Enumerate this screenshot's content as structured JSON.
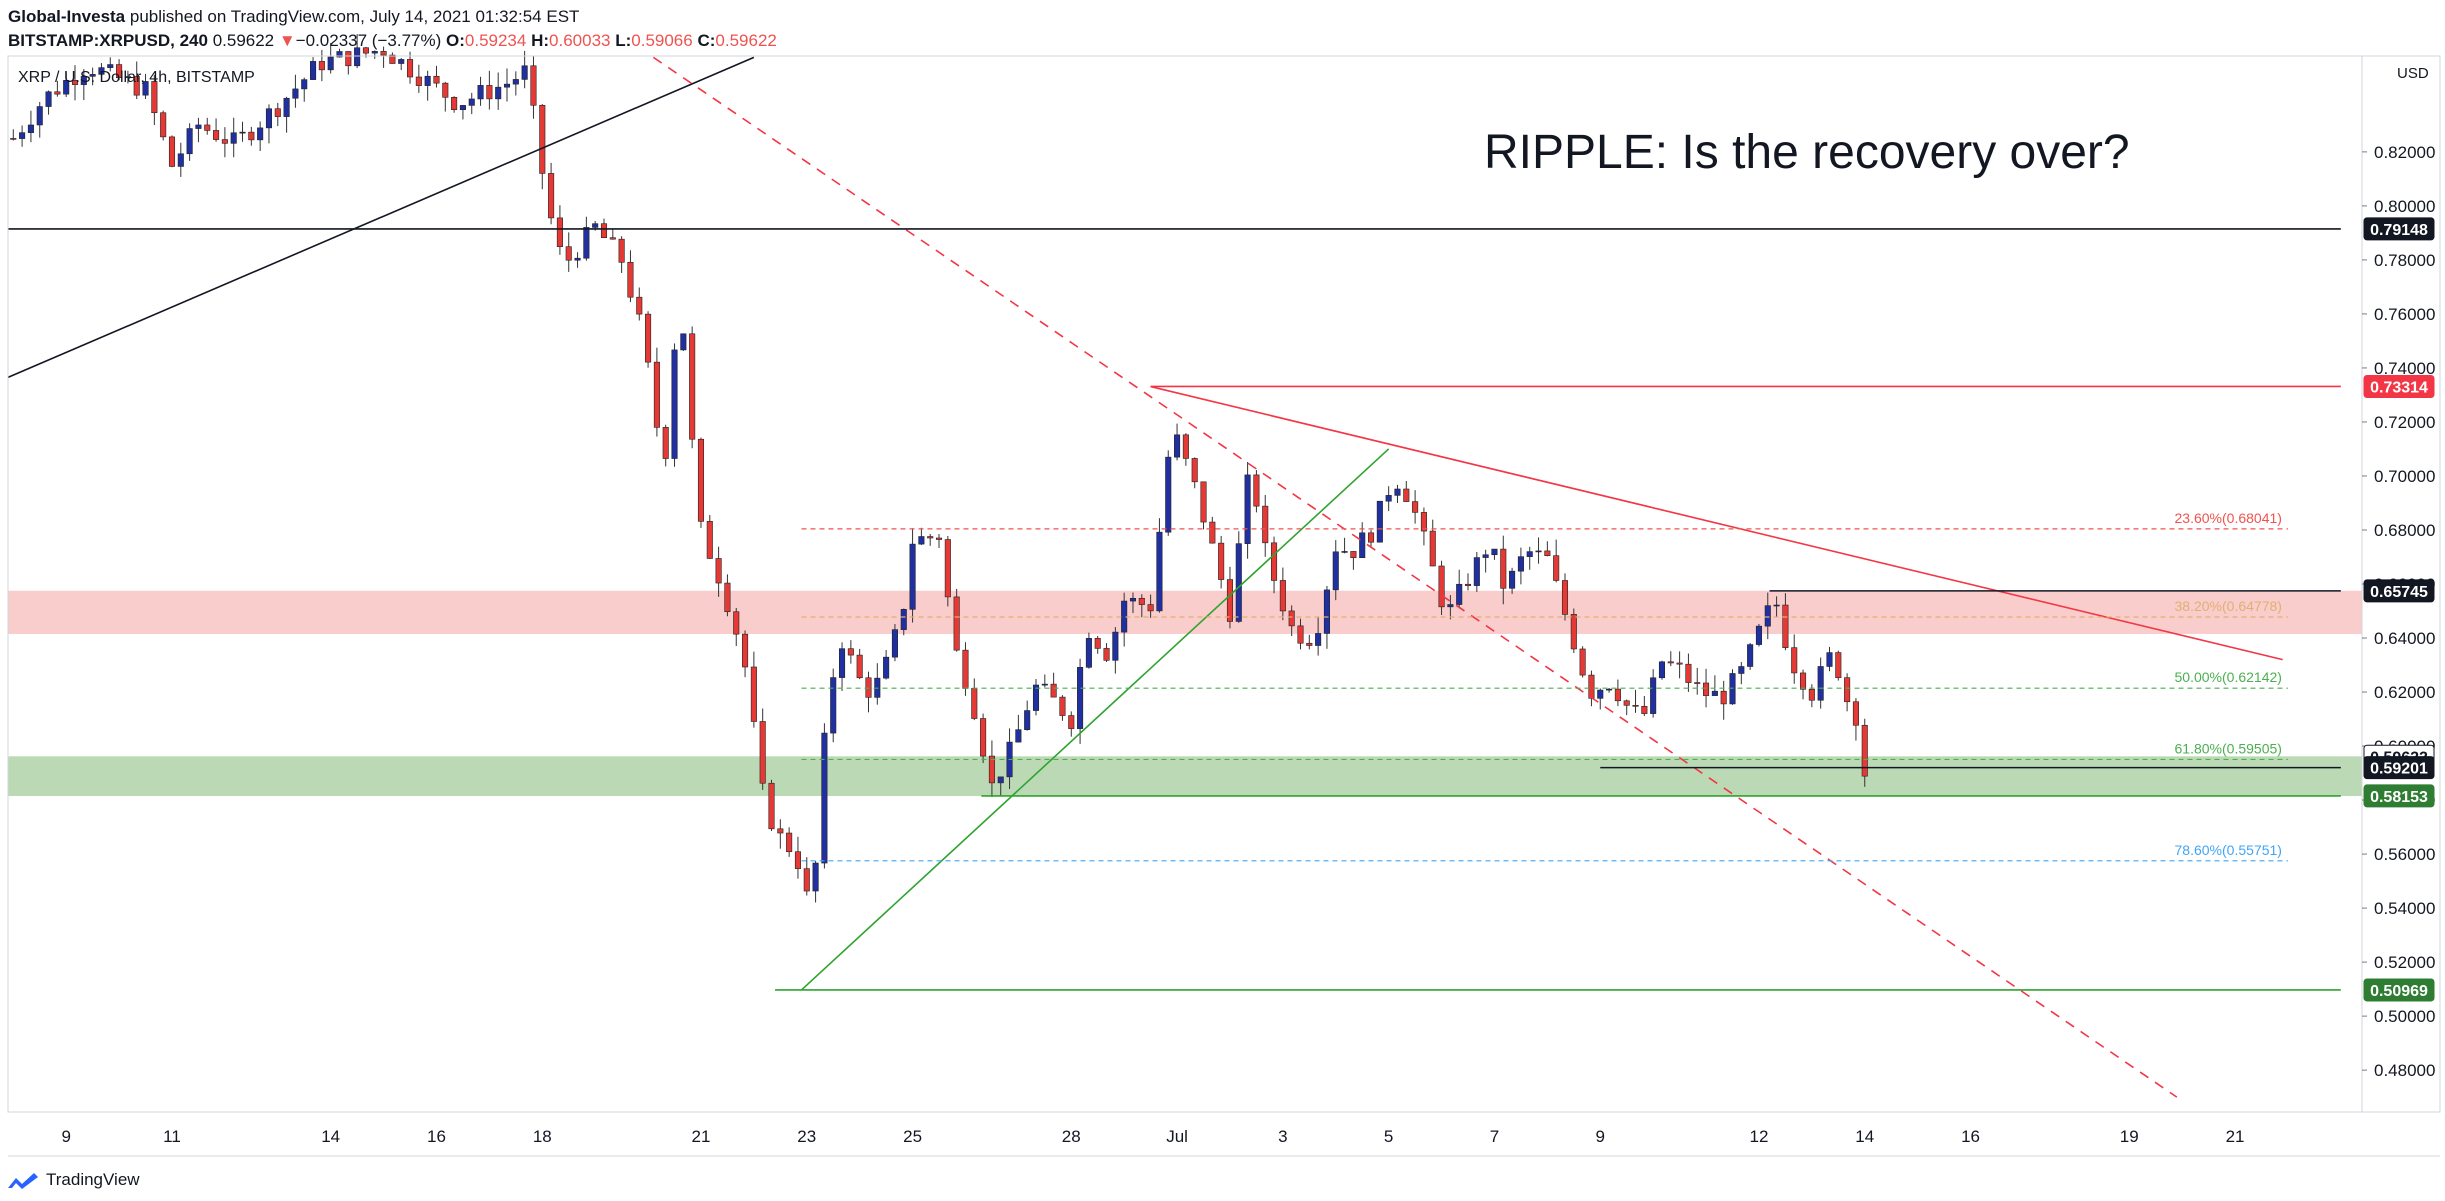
{
  "header": {
    "publisher": "Global-Investa",
    "published_text": "published on TradingView.com, July 14, 2021 01:32:54 EST",
    "symbol": "BITSTAMP:XRPUSD, 240",
    "last": "0.59622",
    "change_arrow": "▼",
    "change": "−0.02337 (−3.77%)",
    "o_label": "O:",
    "o_value": "0.59234",
    "h_label": "H:",
    "h_value": "0.60033",
    "l_label": "L:",
    "l_value": "0.59066",
    "c_label": "C:",
    "c_value": "0.59622"
  },
  "footer": {
    "brand": "TradingView",
    "logo_icon": "tradingview-logo-icon"
  },
  "colors": {
    "up": "#2130a0",
    "down": "#e53935",
    "resistance_zone": "#f8bcbc",
    "support_zone": "#a5cc9c",
    "red_line": "#f23645",
    "green_line": "#2fa32f",
    "fib_red": "#ef5350",
    "fib_orange": "#e0b070",
    "fib_green": "#4caf50",
    "fib_blue": "#42a5f5"
  },
  "chart_data": {
    "type": "candlestick",
    "title": "RIPPLE: Is the recovery over?",
    "pair_label": "XRP / U.S. Dollar, 4h, BITSTAMP",
    "currency_label": "USD",
    "ylim": [
      0.4645,
      0.8555
    ],
    "y_ticks": [
      0.48,
      0.5,
      0.52,
      0.54,
      0.56,
      0.58,
      0.6,
      0.62,
      0.64,
      0.66,
      0.68,
      0.7,
      0.72,
      0.74,
      0.76,
      0.78,
      0.8,
      0.82
    ],
    "y_tick_labels": [
      "0.48000",
      "0.50000",
      "0.52000",
      "0.54000",
      "0.56000",
      "0.58000",
      "0.60000",
      "0.62000",
      "0.64000",
      "0.66000",
      "0.68000",
      "0.70000",
      "0.72000",
      "0.74000",
      "0.76000",
      "0.78000",
      "0.80000",
      "0.82000"
    ],
    "x_ticks": [
      {
        "label": "9",
        "day": 9
      },
      {
        "label": "11",
        "day": 11
      },
      {
        "label": "14",
        "day": 14
      },
      {
        "label": "16",
        "day": 16
      },
      {
        "label": "18",
        "day": 18
      },
      {
        "label": "21",
        "day": 21
      },
      {
        "label": "23",
        "day": 23
      },
      {
        "label": "25",
        "day": 25
      },
      {
        "label": "28",
        "day": 28
      },
      {
        "label": "Jul",
        "day": 30
      },
      {
        "label": "3",
        "day": 32
      },
      {
        "label": "5",
        "day": 34
      },
      {
        "label": "7",
        "day": 36
      },
      {
        "label": "9",
        "day": 38
      },
      {
        "label": "12",
        "day": 41
      },
      {
        "label": "14",
        "day": 43
      },
      {
        "label": "16",
        "day": 45
      },
      {
        "label": "19",
        "day": 48
      },
      {
        "label": "21",
        "day": 50
      }
    ],
    "price_labels": [
      {
        "value": 0.79148,
        "text": "0.79148",
        "style": "black"
      },
      {
        "value": 0.73314,
        "text": "0.73314",
        "style": "red"
      },
      {
        "value": 0.65745,
        "text": "0.65745",
        "style": "black"
      },
      {
        "value": 0.59622,
        "text": "0.59622",
        "style": "white"
      },
      {
        "value": 0.59201,
        "text": "0.59201",
        "style": "black"
      },
      {
        "value": 0.58153,
        "text": "0.58153",
        "style": "green"
      },
      {
        "value": 0.50969,
        "text": "0.50969",
        "style": "green"
      }
    ],
    "zones": [
      {
        "name": "resistance",
        "from": 0.6415,
        "to": 0.6575
      },
      {
        "name": "support",
        "from": 0.5815,
        "to": 0.5962
      }
    ],
    "fib_levels": [
      {
        "text": "23.60%(0.68041)",
        "value": 0.68041,
        "color": "red"
      },
      {
        "text": "38.20%(0.64778)",
        "value": 0.64778,
        "color": "orange"
      },
      {
        "text": "50.00%(0.62142)",
        "value": 0.62142,
        "color": "green"
      },
      {
        "text": "61.80%(0.59505)",
        "value": 0.59505,
        "color": "green"
      },
      {
        "text": "78.60%(0.55751)",
        "value": 0.55751,
        "color": "blue"
      }
    ],
    "lines": [
      {
        "name": "long-term-trendline",
        "color": "black",
        "from": [
          7.9,
          0.7365
        ],
        "to": [
          22.0,
          0.855
        ]
      },
      {
        "name": "dashed-downtrend-line",
        "color": "red",
        "style": "dashed",
        "from": [
          20.1,
          0.855
        ],
        "to": [
          48.9,
          0.47
        ]
      },
      {
        "name": "descending-resistance-line",
        "color": "red",
        "from": [
          29.5,
          0.7331
        ],
        "to": [
          50.9,
          0.632
        ]
      },
      {
        "name": "ascending-support-line",
        "color": "green",
        "from": [
          22.9,
          0.5097
        ],
        "to": [
          34.0,
          0.71
        ]
      },
      {
        "name": "horizontal-0.79148",
        "color": "black",
        "from": [
          7.9,
          0.79148
        ],
        "to": [
          52.0,
          0.79148
        ]
      },
      {
        "name": "horizontal-0.73314",
        "color": "red",
        "from": [
          29.5,
          0.73314
        ],
        "to": [
          52.0,
          0.73314
        ]
      },
      {
        "name": "horizontal-0.65745",
        "color": "black",
        "from": [
          41.2,
          0.65745
        ],
        "to": [
          52.0,
          0.65745
        ]
      },
      {
        "name": "horizontal-0.59201",
        "color": "black",
        "from": [
          38.0,
          0.59201
        ],
        "to": [
          52.0,
          0.59201
        ]
      },
      {
        "name": "horizontal-0.58153",
        "color": "green",
        "from": [
          26.3,
          0.58153
        ],
        "to": [
          52.0,
          0.58153
        ]
      },
      {
        "name": "horizontal-0.50969",
        "color": "green",
        "from": [
          22.4,
          0.50969
        ],
        "to": [
          52.0,
          0.50969
        ]
      }
    ],
    "x_range_days": [
      7.9,
      52.4
    ],
    "candle_anchors": [
      [
        8.0,
        0.825
      ],
      [
        8.6,
        0.84
      ],
      [
        9.4,
        0.852
      ],
      [
        10.5,
        0.843
      ],
      [
        11.0,
        0.815
      ],
      [
        11.5,
        0.83
      ],
      [
        12.2,
        0.823
      ],
      [
        13.0,
        0.837
      ],
      [
        13.8,
        0.853
      ],
      [
        15.0,
        0.858
      ],
      [
        16.4,
        0.838
      ],
      [
        17.3,
        0.845
      ],
      [
        17.7,
        0.85
      ],
      [
        18.1,
        0.8
      ],
      [
        18.4,
        0.778
      ],
      [
        19.0,
        0.792
      ],
      [
        19.5,
        0.78
      ],
      [
        19.9,
        0.752
      ],
      [
        20.3,
        0.702
      ],
      [
        20.6,
        0.772
      ],
      [
        20.8,
        0.718
      ],
      [
        21.0,
        0.68
      ],
      [
        21.4,
        0.66
      ],
      [
        21.8,
        0.634
      ],
      [
        22.2,
        0.578
      ],
      [
        22.5,
        0.566
      ],
      [
        22.8,
        0.56
      ],
      [
        23.1,
        0.536
      ],
      [
        23.3,
        0.596
      ],
      [
        23.6,
        0.642
      ],
      [
        24.1,
        0.62
      ],
      [
        24.4,
        0.624
      ],
      [
        24.8,
        0.648
      ],
      [
        25.0,
        0.676
      ],
      [
        25.5,
        0.678
      ],
      [
        25.8,
        0.636
      ],
      [
        26.1,
        0.62
      ],
      [
        26.5,
        0.585
      ],
      [
        26.9,
        0.6
      ],
      [
        27.3,
        0.622
      ],
      [
        27.6,
        0.618
      ],
      [
        28.0,
        0.61
      ],
      [
        28.3,
        0.644
      ],
      [
        28.7,
        0.634
      ],
      [
        29.0,
        0.654
      ],
      [
        29.5,
        0.652
      ],
      [
        29.9,
        0.718
      ],
      [
        30.3,
        0.698
      ],
      [
        30.6,
        0.678
      ],
      [
        31.0,
        0.65
      ],
      [
        31.4,
        0.706
      ],
      [
        31.6,
        0.676
      ],
      [
        31.9,
        0.658
      ],
      [
        32.2,
        0.642
      ],
      [
        32.6,
        0.64
      ],
      [
        33.0,
        0.674
      ],
      [
        33.3,
        0.672
      ],
      [
        33.7,
        0.68
      ],
      [
        34.1,
        0.7
      ],
      [
        34.4,
        0.692
      ],
      [
        34.7,
        0.674
      ],
      [
        35.1,
        0.648
      ],
      [
        35.5,
        0.662
      ],
      [
        35.9,
        0.675
      ],
      [
        36.2,
        0.658
      ],
      [
        36.6,
        0.672
      ],
      [
        37.0,
        0.669
      ],
      [
        37.4,
        0.645
      ],
      [
        37.8,
        0.62
      ],
      [
        38.2,
        0.624
      ],
      [
        38.6,
        0.612
      ],
      [
        38.9,
        0.612
      ],
      [
        39.1,
        0.632
      ],
      [
        39.5,
        0.628
      ],
      [
        39.9,
        0.62
      ],
      [
        40.3,
        0.618
      ],
      [
        40.7,
        0.628
      ],
      [
        41.0,
        0.642
      ],
      [
        41.3,
        0.655
      ],
      [
        41.6,
        0.632
      ],
      [
        42.0,
        0.62
      ],
      [
        42.4,
        0.635
      ],
      [
        42.7,
        0.615
      ],
      [
        42.9,
        0.61
      ],
      [
        43.0,
        0.59
      ],
      [
        43.15,
        0.5962
      ]
    ]
  }
}
